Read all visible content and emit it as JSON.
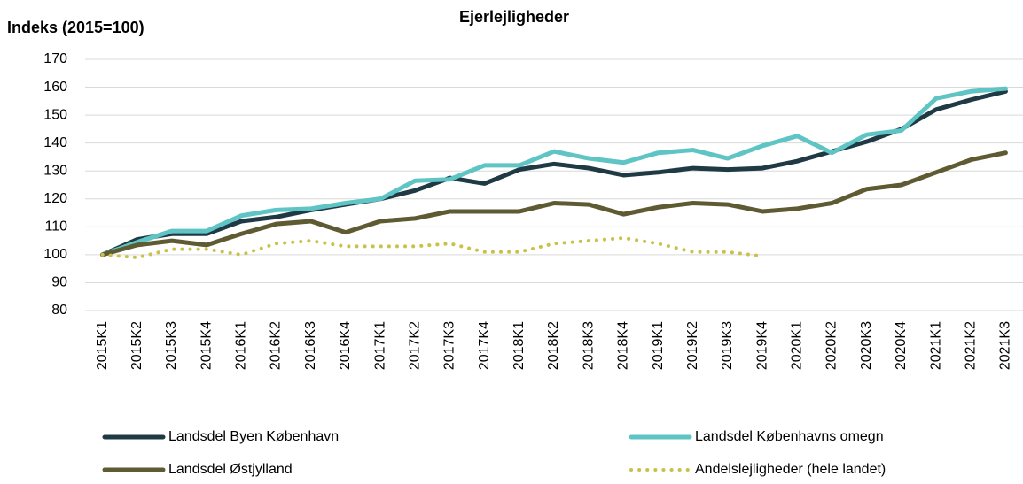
{
  "chart_data": {
    "type": "line",
    "title": "Ejerlejligheder",
    "y_label": "Indeks (2015=100)",
    "categories": [
      "2015K1",
      "2015K2",
      "2015K3",
      "2015K4",
      "2016K1",
      "2016K2",
      "2016K3",
      "2016K4",
      "2017K1",
      "2017K2",
      "2017K3",
      "2017K4",
      "2018K1",
      "2018K2",
      "2018K3",
      "2018K4",
      "2019K1",
      "2019K2",
      "2019K3",
      "2019K4",
      "2020K1",
      "2020K2",
      "2020K3",
      "2020K4",
      "2021K1",
      "2021K2",
      "2021K3"
    ],
    "series": [
      {
        "name": "Landsdel Byen København",
        "color": "#1f3a44",
        "dash": "solid",
        "values": [
          100,
          105.5,
          107.5,
          107.5,
          112,
          113.5,
          116,
          118,
          120,
          123,
          127.5,
          125.5,
          130.5,
          132.5,
          131,
          128.5,
          129.5,
          131,
          130.5,
          131,
          133.5,
          137,
          140.5,
          145,
          152,
          155.5,
          158.5
        ]
      },
      {
        "name": "Landsdel Københavns omegn",
        "color": "#5fc4c4",
        "dash": "solid",
        "values": [
          100,
          104.5,
          108.5,
          108.5,
          114,
          116,
          116.5,
          118.5,
          120,
          126.5,
          127,
          132,
          132,
          137,
          134.5,
          133,
          136.5,
          137.5,
          134.5,
          139,
          142.5,
          136.5,
          143,
          144.5,
          156,
          158.5,
          159.5
        ]
      },
      {
        "name": "Landsdel Østjylland",
        "color": "#5e5a32",
        "dash": "solid",
        "values": [
          100,
          103.5,
          105,
          103.5,
          107.5,
          111,
          112,
          108,
          112,
          113,
          115.5,
          115.5,
          115.5,
          118.5,
          118,
          114.5,
          117,
          118.5,
          118,
          115.5,
          116.5,
          118.5,
          123.5,
          125,
          129.5,
          134,
          136.5
        ]
      },
      {
        "name": "Andelslejligheder (hele landet)",
        "color": "#c9c24a",
        "dash": "dotted",
        "values": [
          100,
          99,
          102,
          102,
          100,
          104,
          105,
          103,
          103,
          103,
          104,
          101,
          101,
          104,
          105,
          106,
          104,
          101,
          101,
          99.5,
          null,
          null,
          null,
          null,
          null,
          null,
          null
        ]
      }
    ],
    "ylim": [
      80,
      170
    ],
    "yticks": [
      80,
      90,
      100,
      110,
      120,
      130,
      140,
      150,
      160,
      170
    ],
    "grid": true,
    "legend": "bottom"
  }
}
